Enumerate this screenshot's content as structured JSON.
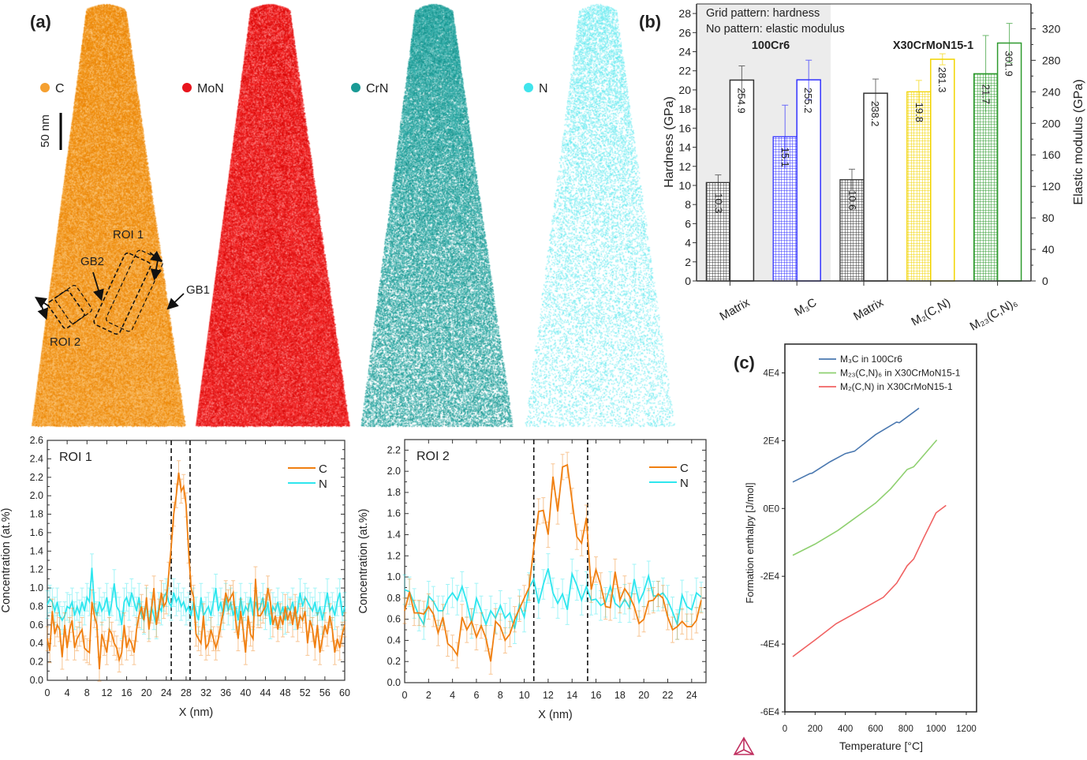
{
  "panel_labels": {
    "a": "(a)",
    "b": "(b)",
    "c": "(c)"
  },
  "atom_maps": {
    "maps": [
      {
        "label": "C",
        "color": "#f5a030"
      },
      {
        "label": "MoN",
        "color": "#e8141c"
      },
      {
        "label": "CrN",
        "color": "#1a9a95"
      },
      {
        "label": "N",
        "color": "#40e4ec"
      }
    ],
    "scale_bar": "50 nm",
    "annotations": {
      "roi1": "ROI 1",
      "roi2": "ROI 2",
      "gb1": "GB1",
      "gb2": "GB2"
    }
  },
  "chart_data": [
    {
      "type": "line",
      "title": "ROI 1",
      "xlabel": "X (nm)",
      "ylabel": "Concentration (at.%)",
      "xlim": [
        0,
        60
      ],
      "ylim": [
        0,
        2.6
      ],
      "x_ticks": [
        0,
        4,
        8,
        12,
        16,
        20,
        24,
        28,
        32,
        36,
        40,
        44,
        48,
        52,
        56,
        60
      ],
      "y_ticks": [
        "0.0",
        "0.2",
        "0.4",
        "0.6",
        "0.8",
        "1.0",
        "1.2",
        "1.4",
        "1.6",
        "1.8",
        "2.0",
        "2.2",
        "2.4",
        "2.6"
      ],
      "boundaries": [
        25,
        28.8
      ],
      "legend": "top-right",
      "series": [
        {
          "name": "C",
          "color": "#f07f10",
          "x_start": 0,
          "x_step": 0.5,
          "error": 0.13,
          "values": [
            0.45,
            0.32,
            0.75,
            0.5,
            0.6,
            0.55,
            0.25,
            0.6,
            0.35,
            0.55,
            0.65,
            0.35,
            0.45,
            0.5,
            0.55,
            0.35,
            0.32,
            0.3,
            0.85,
            0.7,
            0.6,
            0.12,
            0.5,
            0.4,
            0.3,
            0.55,
            0.5,
            0.4,
            0.35,
            0.22,
            0.3,
            0.6,
            0.35,
            0.45,
            0.4,
            0.3,
            0.55,
            0.7,
            0.8,
            0.65,
            0.9,
            0.55,
            0.75,
            1.0,
            0.6,
            0.75,
            0.95,
            0.8,
            0.85,
            1.15,
            1.45,
            1.8,
            2.0,
            2.25,
            2.05,
            2.1,
            1.9,
            1.4,
            1.0,
            0.9,
            0.5,
            0.45,
            0.4,
            0.7,
            0.35,
            0.4,
            0.55,
            0.45,
            0.35,
            0.45,
            0.6,
            0.75,
            0.95,
            0.85,
            0.9,
            0.95,
            0.65,
            0.45,
            0.75,
            0.55,
            0.3,
            0.7,
            0.5,
            0.45,
            1.1,
            0.7,
            0.7,
            0.75,
            0.8,
            1.0,
            0.85,
            0.6,
            0.7,
            0.55,
            0.7,
            0.6,
            0.8,
            0.65,
            0.75,
            0.6,
            0.8,
            0.55,
            0.7,
            0.65,
            0.75,
            0.4,
            0.65,
            0.55,
            0.35,
            0.6,
            0.3,
            0.45,
            0.6,
            0.5,
            0.7,
            0.55,
            0.3,
            0.45,
            0.35,
            0.5,
            0.6
          ]
        },
        {
          "name": "N",
          "color": "#2ee6ee",
          "x_start": 0,
          "x_step": 0.5,
          "error": 0.15,
          "values": [
            0.82,
            0.88,
            0.85,
            0.75,
            0.85,
            0.7,
            0.65,
            0.7,
            0.8,
            0.78,
            0.85,
            0.7,
            0.8,
            0.72,
            0.85,
            0.75,
            0.9,
            0.85,
            1.22,
            0.8,
            0.7,
            0.85,
            0.75,
            0.8,
            0.9,
            0.7,
            0.85,
            1.05,
            0.8,
            0.75,
            0.6,
            0.85,
            0.9,
            0.8,
            0.95,
            0.85,
            0.75,
            0.9,
            0.7,
            0.65,
            0.85,
            0.6,
            0.8,
            0.7,
            0.6,
            0.8,
            0.75,
            0.9,
            0.95,
            0.85,
            0.8,
            0.95,
            0.85,
            0.9,
            0.8,
            0.85,
            0.75,
            0.8,
            0.7,
            0.85,
            0.75,
            0.65,
            0.9,
            0.7,
            0.75,
            0.8,
            0.7,
            0.85,
            1.0,
            0.75,
            0.85,
            0.7,
            0.9,
            0.75,
            0.85,
            0.7,
            0.8,
            0.65,
            0.9,
            0.7,
            0.8,
            0.75,
            0.9,
            0.7,
            0.85,
            0.75,
            0.8,
            0.9,
            0.7,
            0.85,
            0.6,
            0.8,
            0.75,
            0.85,
            0.7,
            0.8,
            0.65,
            0.8,
            0.75,
            0.85,
            0.7,
            0.75,
            0.95,
            0.8,
            0.9,
            0.85,
            0.8,
            0.75,
            0.85,
            0.7,
            0.8,
            0.65,
            0.8,
            0.95,
            0.75,
            0.8,
            0.7,
            0.85,
            0.95,
            0.7,
            0.8
          ]
        }
      ]
    },
    {
      "type": "line",
      "title": "ROI 2",
      "xlabel": "X (nm)",
      "ylabel": "Concentration (at.%)",
      "xlim": [
        0,
        25.2
      ],
      "ylim": [
        0,
        2.3
      ],
      "x_ticks": [
        0,
        2,
        4,
        6,
        8,
        10,
        12,
        14,
        16,
        18,
        20,
        22,
        24
      ],
      "y_ticks": [
        "0.0",
        "0.2",
        "0.4",
        "0.6",
        "0.8",
        "1.0",
        "1.2",
        "1.4",
        "1.6",
        "1.8",
        "2.0",
        "2.2"
      ],
      "boundaries": [
        10.8,
        15.3
      ],
      "legend": "top-right",
      "series": [
        {
          "name": "C",
          "color": "#f07f10",
          "x_start": 0,
          "x_step": 0.4,
          "error": 0.12,
          "values": [
            0.68,
            0.86,
            0.66,
            0.66,
            0.65,
            0.72,
            0.65,
            0.47,
            0.62,
            0.37,
            0.33,
            0.26,
            0.62,
            0.5,
            0.58,
            0.43,
            0.54,
            0.42,
            0.2,
            0.58,
            0.53,
            0.4,
            0.46,
            0.6,
            0.7,
            0.8,
            0.9,
            1.28,
            1.62,
            1.63,
            1.4,
            1.95,
            1.62,
            2.04,
            2.06,
            1.72,
            1.38,
            1.32,
            1.56,
            0.88,
            1.07,
            0.92,
            0.72,
            0.71,
            1.05,
            0.78,
            0.89,
            0.82,
            0.72,
            0.56,
            0.6,
            0.77,
            0.78,
            0.84,
            0.8,
            0.62,
            0.5,
            0.53,
            0.58,
            0.53,
            0.53,
            0.59,
            0.78
          ]
        },
        {
          "name": "N",
          "color": "#2ee6ee",
          "x_start": 0,
          "x_step": 0.4,
          "error": 0.14,
          "values": [
            0.88,
            0.86,
            0.75,
            0.63,
            0.55,
            0.82,
            0.77,
            0.68,
            0.68,
            0.79,
            0.85,
            0.78,
            0.91,
            0.76,
            0.56,
            0.8,
            0.68,
            0.55,
            0.68,
            0.61,
            0.73,
            0.61,
            0.66,
            0.51,
            0.74,
            0.62,
            0.9,
            0.98,
            0.75,
            0.93,
            1.08,
            0.85,
            0.75,
            0.84,
            0.69,
            1.03,
            0.92,
            0.78,
            0.91,
            0.78,
            0.79,
            0.73,
            0.76,
            0.91,
            0.75,
            0.71,
            0.79,
            0.71,
            0.98,
            0.76,
            0.86,
            1.01,
            0.82,
            0.82,
            0.85,
            0.78,
            0.67,
            0.55,
            0.83,
            0.72,
            0.69,
            0.85,
            0.81
          ]
        }
      ]
    },
    {
      "type": "bar",
      "notes": [
        "Grid pattern: hardness",
        "No pattern: elastic modulus"
      ],
      "groups": [
        "100Cr6",
        "X30CrMoN15-1"
      ],
      "categories": [
        "Matrix",
        "M₃C",
        "Matrix",
        "M₂(C,N)",
        "M₂₃(C,N)₆"
      ],
      "colors": [
        "#333333",
        "#3333ff",
        "#333333",
        "#f2d400",
        "#2e9a2e"
      ],
      "group_shading": "#ececec",
      "ylabel": "Hardness (GPa)",
      "ylabel_right": "Elastic modulus (GPa)",
      "ylim": [
        0,
        29
      ],
      "ylim_right": [
        0,
        351.5
      ],
      "y_ticks": [
        0,
        2,
        4,
        6,
        8,
        10,
        12,
        14,
        16,
        18,
        20,
        22,
        24,
        26,
        28
      ],
      "y_ticks_right": [
        0,
        40,
        80,
        120,
        160,
        200,
        240,
        280,
        320
      ],
      "series": [
        {
          "name": "hardness",
          "pattern": "grid",
          "axis": "left",
          "values": [
            10.3,
            15.1,
            10.6,
            19.8,
            21.7
          ],
          "errors": [
            0.8,
            3.3,
            1.1,
            1.2,
            4.0
          ]
        },
        {
          "name": "elastic modulus",
          "pattern": "none",
          "axis": "right",
          "values": [
            254.9,
            255.2,
            238.2,
            281.3,
            301.9
          ],
          "errors": [
            18,
            25,
            18,
            7,
            25
          ]
        }
      ]
    },
    {
      "type": "line",
      "xlabel": "Temperature [°C]",
      "ylabel": "Formation enthalpy [J/mol]",
      "xlim": [
        0,
        1268
      ],
      "ylim": [
        -60000,
        48500
      ],
      "x_ticks": [
        0,
        200,
        400,
        600,
        800,
        1000,
        1200
      ],
      "y_ticks": [
        {
          "v": 40000,
          "label": "4E4"
        },
        {
          "v": 20000,
          "label": "2E4"
        },
        {
          "v": 0,
          "label": "0E0"
        },
        {
          "v": -20000,
          "label": "-2E4"
        },
        {
          "v": -40000,
          "label": "-4E4"
        },
        {
          "v": -60000,
          "label": "-6E4"
        }
      ],
      "legend": "top",
      "series": [
        {
          "name": "M₃C in 100Cr6",
          "color": "#4a78b0",
          "x": [
            52,
            165,
            180,
            300,
            400,
            461,
            600,
            739,
            757,
            887
          ],
          "values": [
            7800,
            10300,
            10400,
            13800,
            16200,
            16900,
            21800,
            25500,
            25300,
            29600
          ]
        },
        {
          "name": "M₂₃(C,N)₆ in X30CrMoN15-1",
          "color": "#8fd070",
          "x": [
            52,
            200,
            350,
            443,
            520,
            600,
            700,
            809,
            852,
            1005
          ],
          "values": [
            -13800,
            -10500,
            -6500,
            -3500,
            -1000,
            1600,
            5800,
            11500,
            12300,
            20200
          ]
        },
        {
          "name": "M₂(C,N) in X30CrMoN15-1",
          "color": "#f06262",
          "x": [
            52,
            200,
            339,
            500,
            652,
            740,
            809,
            852,
            920,
            1000,
            1066
          ],
          "values": [
            -43700,
            -38800,
            -34000,
            -30000,
            -26200,
            -22000,
            -16900,
            -14900,
            -8500,
            -1300,
            900
          ]
        }
      ]
    }
  ]
}
